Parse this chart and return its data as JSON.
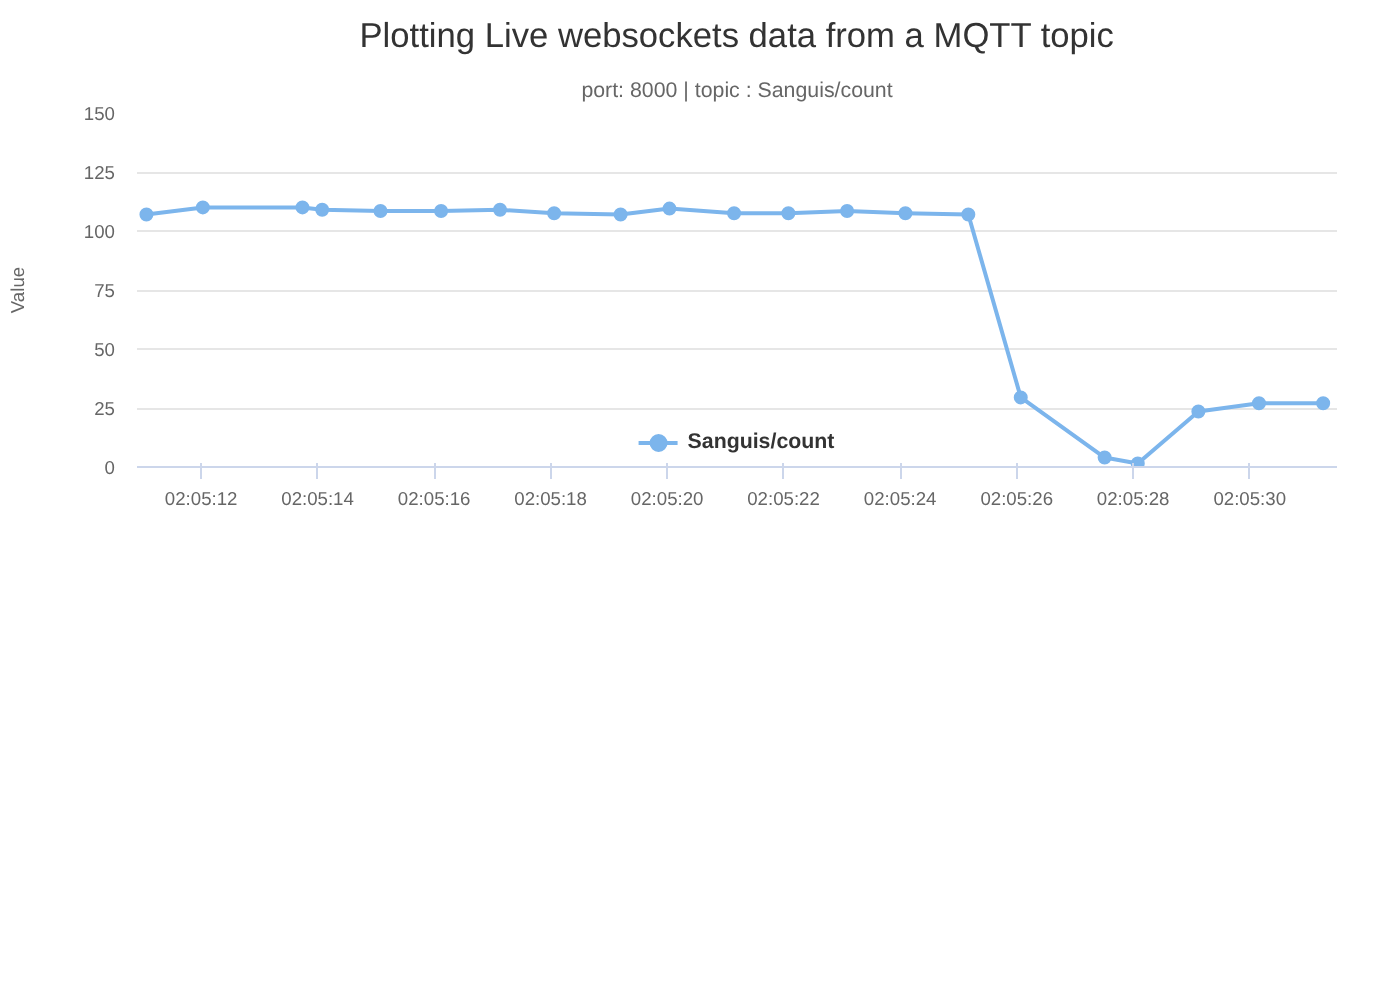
{
  "chart_data": {
    "type": "line",
    "title": "Plotting Live websockets data from a MQTT topic",
    "subtitle": "port: 8000 | topic : Sanguis/count",
    "ylabel": "Value",
    "x": [
      2.086406,
      2.086675,
      2.08715,
      2.087244,
      2.087522,
      2.087811,
      2.088092,
      2.08835,
      2.088667,
      2.0889,
      2.089208,
      2.089467,
      2.089747,
      2.090025,
      2.090325,
      2.090575,
      2.090975,
      2.091133,
      2.091422,
      2.091711,
      2.092017
    ],
    "series": [
      {
        "name": "Sanguis/count",
        "color": "#7cb5ec",
        "values": [
          107,
          110,
          110,
          109,
          108.5,
          108.5,
          109,
          107.5,
          107,
          109.5,
          107.5,
          107.5,
          108.5,
          107.5,
          107,
          29.5,
          4,
          1.5,
          23.5,
          27,
          27
        ]
      }
    ],
    "xlim": [
      2.086361,
      2.092083
    ],
    "xticks": [
      {
        "value": 2.086667,
        "label": "02:05:12"
      },
      {
        "value": 2.087222,
        "label": "02:05:14"
      },
      {
        "value": 2.087778,
        "label": "02:05:16"
      },
      {
        "value": 2.088333,
        "label": "02:05:18"
      },
      {
        "value": 2.088889,
        "label": "02:05:20"
      },
      {
        "value": 2.089444,
        "label": "02:05:22"
      },
      {
        "value": 2.09,
        "label": "02:05:24"
      },
      {
        "value": 2.090556,
        "label": "02:05:26"
      },
      {
        "value": 2.091111,
        "label": "02:05:28"
      },
      {
        "value": 2.091667,
        "label": "02:05:30"
      }
    ],
    "ylim": [
      0,
      150
    ],
    "yticks": [
      0,
      25,
      50,
      75,
      100,
      125,
      150
    ],
    "grid": "y",
    "legend": "bottom",
    "marker": "circle",
    "line_style": "solid"
  }
}
